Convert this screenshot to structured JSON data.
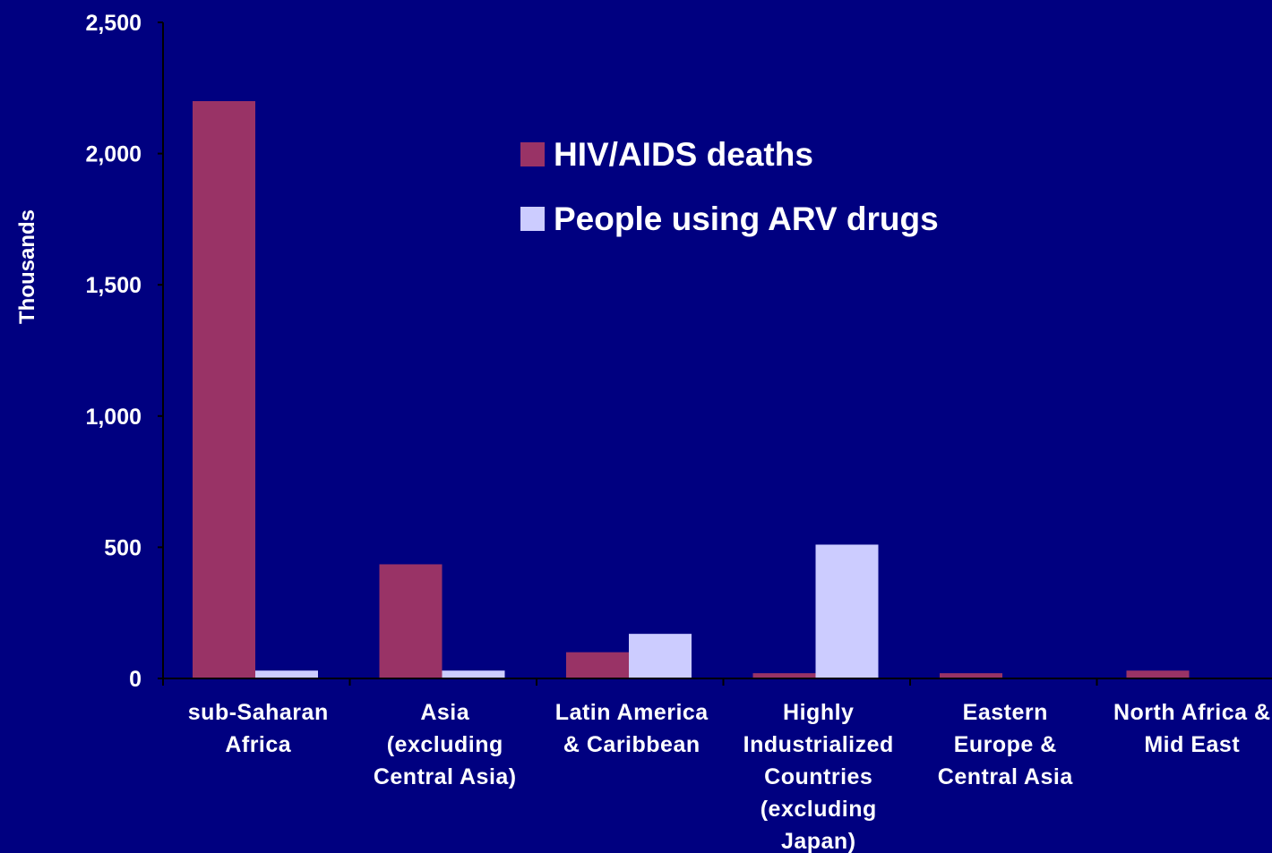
{
  "chart_data": {
    "type": "bar",
    "title": "",
    "xlabel": "",
    "ylabel": "Thousands",
    "ylim": [
      0,
      2500
    ],
    "yticks": [
      "0",
      "500",
      "1,000",
      "1,500",
      "2,000",
      "2,500"
    ],
    "ytick_values": [
      0,
      500,
      1000,
      1500,
      2000,
      2500
    ],
    "categories": [
      [
        "sub-Saharan",
        "Africa"
      ],
      [
        "Asia",
        "(excluding",
        "Central Asia)"
      ],
      [
        "Latin America",
        "& Caribbean"
      ],
      [
        "Highly",
        "Industrialized",
        "Countries",
        "(excluding",
        "Japan)"
      ],
      [
        "Eastern",
        "Europe &",
        "Central Asia"
      ],
      [
        "North Africa &",
        "Mid East"
      ]
    ],
    "series": [
      {
        "name": "HIV/AIDS deaths",
        "color": "#993366",
        "values": [
          2200,
          435,
          100,
          20,
          20,
          30
        ]
      },
      {
        "name": "People using ARV drugs",
        "color": "#ccccff",
        "values": [
          30,
          30,
          170,
          510,
          0,
          0
        ]
      }
    ],
    "grid": false,
    "legend_position": "top-center"
  }
}
